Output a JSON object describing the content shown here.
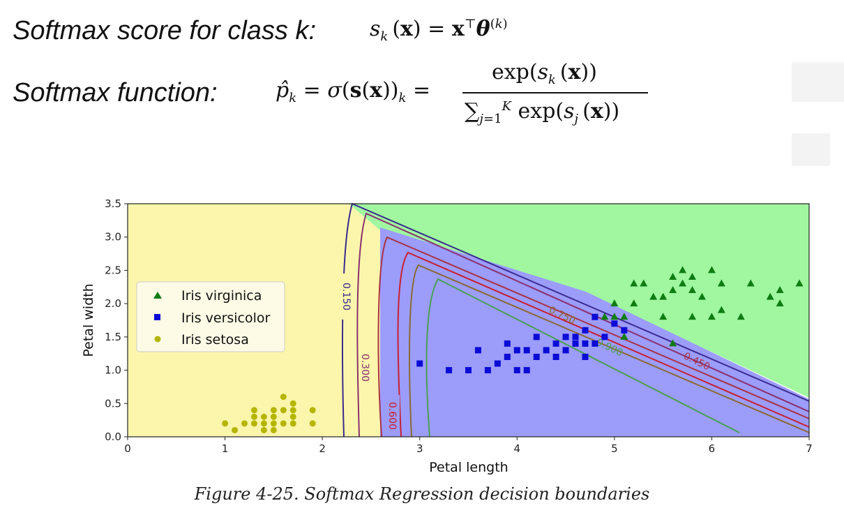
{
  "equations": {
    "score_label": "Softmax score for class k:",
    "function_label": "Softmax function:"
  },
  "caption": "Figure 4-25. Softmax Regression decision boundaries",
  "chart_data": {
    "type": "scatter",
    "xlabel": "Petal length",
    "ylabel": "Petal width",
    "xlim": [
      0,
      7
    ],
    "ylim": [
      0,
      3.5
    ],
    "x_ticks": [
      "0",
      "1",
      "2",
      "3",
      "4",
      "5",
      "6",
      "7"
    ],
    "y_ticks": [
      "0.0",
      "0.5",
      "1.0",
      "1.5",
      "2.0",
      "2.5",
      "3.0",
      "3.5"
    ],
    "legend_position": "left",
    "grid": false,
    "regions": [
      {
        "class": "Iris setosa",
        "color": "#fbf6ab"
      },
      {
        "class": "Iris versicolor",
        "color": "#9c9cfb"
      },
      {
        "class": "Iris virginica",
        "color": "#a0f7a0"
      }
    ],
    "contour_labels": [
      "0.150",
      "0.300",
      "0.450",
      "0.600",
      "0.750",
      "0.900"
    ],
    "series": [
      {
        "name": "Iris virginica",
        "marker": "triangle",
        "color": "#0e7c12",
        "points": [
          [
            5.0,
            1.8
          ],
          [
            5.1,
            1.8
          ],
          [
            5.2,
            2.0
          ],
          [
            5.3,
            2.3
          ],
          [
            5.5,
            2.1
          ],
          [
            5.6,
            2.2
          ],
          [
            5.6,
            2.4
          ],
          [
            5.7,
            2.3
          ],
          [
            5.7,
            2.5
          ],
          [
            5.8,
            2.2
          ],
          [
            5.8,
            2.4
          ],
          [
            5.9,
            2.1
          ],
          [
            6.0,
            2.5
          ],
          [
            6.1,
            2.3
          ],
          [
            6.1,
            1.9
          ],
          [
            6.3,
            1.8
          ],
          [
            6.4,
            2.3
          ],
          [
            6.6,
            2.1
          ],
          [
            6.7,
            2.2
          ],
          [
            6.9,
            2.3
          ],
          [
            4.9,
            1.8
          ],
          [
            5.0,
            2.0
          ],
          [
            5.1,
            1.5
          ],
          [
            5.6,
            1.4
          ],
          [
            5.8,
            1.8
          ],
          [
            6.0,
            1.8
          ],
          [
            5.4,
            2.1
          ],
          [
            5.2,
            2.3
          ],
          [
            5.5,
            1.8
          ],
          [
            6.7,
            2.0
          ]
        ]
      },
      {
        "name": "Iris versicolor",
        "marker": "square",
        "color": "#0b0bd6",
        "points": [
          [
            3.0,
            1.1
          ],
          [
            3.3,
            1.0
          ],
          [
            3.5,
            1.0
          ],
          [
            3.6,
            1.3
          ],
          [
            3.7,
            1.0
          ],
          [
            3.8,
            1.1
          ],
          [
            3.9,
            1.2
          ],
          [
            3.9,
            1.4
          ],
          [
            4.0,
            1.0
          ],
          [
            4.0,
            1.3
          ],
          [
            4.1,
            1.0
          ],
          [
            4.1,
            1.3
          ],
          [
            4.2,
            1.2
          ],
          [
            4.2,
            1.5
          ],
          [
            4.3,
            1.3
          ],
          [
            4.4,
            1.2
          ],
          [
            4.4,
            1.4
          ],
          [
            4.5,
            1.5
          ],
          [
            4.5,
            1.3
          ],
          [
            4.6,
            1.4
          ],
          [
            4.6,
            1.5
          ],
          [
            4.7,
            1.2
          ],
          [
            4.7,
            1.4
          ],
          [
            4.7,
            1.6
          ],
          [
            4.8,
            1.8
          ],
          [
            4.8,
            1.4
          ],
          [
            4.9,
            1.5
          ],
          [
            5.0,
            1.7
          ],
          [
            5.1,
            1.6
          ]
        ]
      },
      {
        "name": "Iris setosa",
        "marker": "circle",
        "color": "#b5b500",
        "points": [
          [
            1.0,
            0.2
          ],
          [
            1.1,
            0.1
          ],
          [
            1.2,
            0.2
          ],
          [
            1.3,
            0.2
          ],
          [
            1.3,
            0.3
          ],
          [
            1.3,
            0.4
          ],
          [
            1.4,
            0.1
          ],
          [
            1.4,
            0.2
          ],
          [
            1.4,
            0.3
          ],
          [
            1.5,
            0.1
          ],
          [
            1.5,
            0.2
          ],
          [
            1.5,
            0.3
          ],
          [
            1.5,
            0.4
          ],
          [
            1.6,
            0.2
          ],
          [
            1.6,
            0.4
          ],
          [
            1.6,
            0.6
          ],
          [
            1.7,
            0.2
          ],
          [
            1.7,
            0.3
          ],
          [
            1.7,
            0.4
          ],
          [
            1.7,
            0.5
          ],
          [
            1.9,
            0.2
          ],
          [
            1.9,
            0.4
          ]
        ]
      }
    ]
  }
}
